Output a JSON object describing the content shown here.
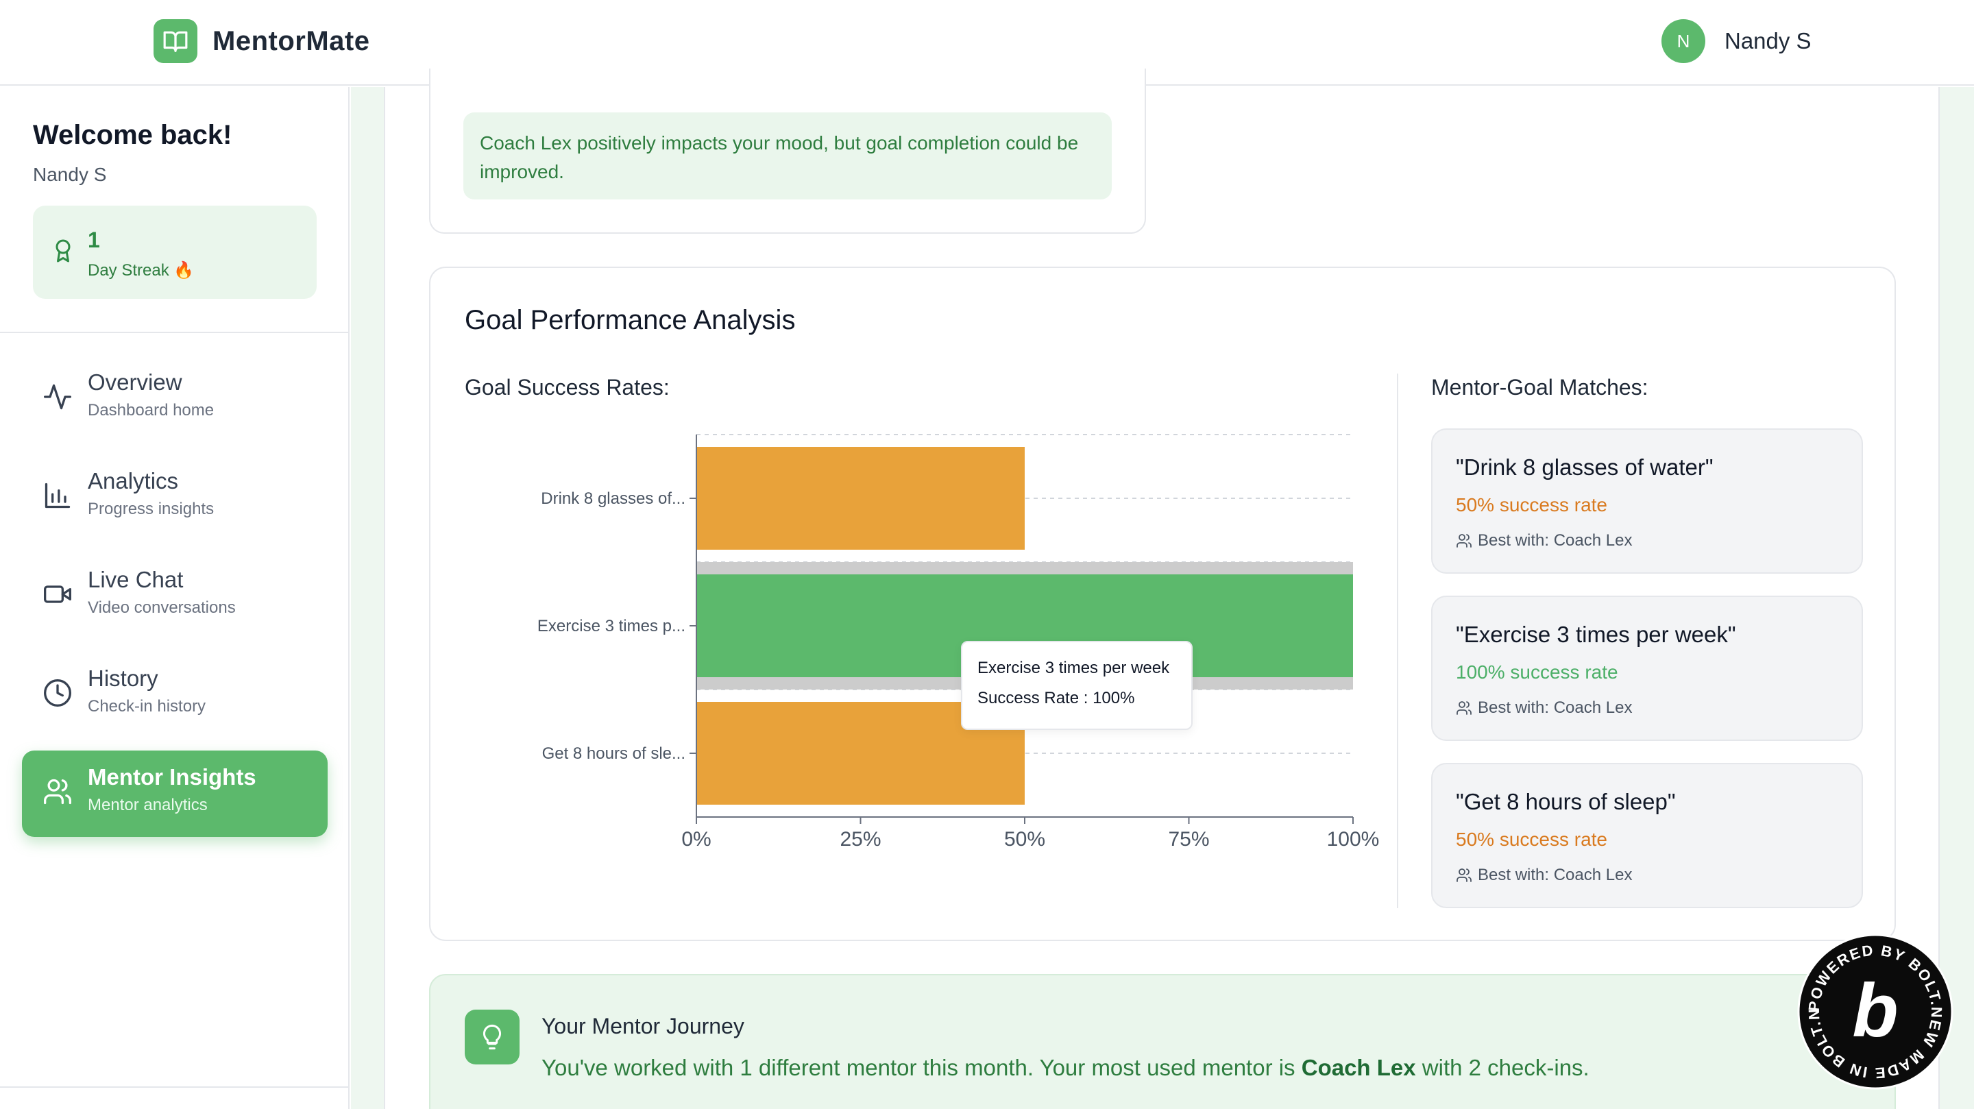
{
  "header": {
    "brand": "MentorMate",
    "user_initial": "N",
    "user_name": "Nandy S"
  },
  "sidebar": {
    "welcome": "Welcome back!",
    "user_name": "Nandy S",
    "streak_count": "1",
    "streak_label": "Day Streak 🔥",
    "items": [
      {
        "title": "Overview",
        "sub": "Dashboard home",
        "icon": "activity-icon"
      },
      {
        "title": "Analytics",
        "sub": "Progress insights",
        "icon": "bar-chart-icon"
      },
      {
        "title": "Live Chat",
        "sub": "Video conversations",
        "icon": "video-icon"
      },
      {
        "title": "History",
        "sub": "Check-in history",
        "icon": "clock-icon"
      },
      {
        "title": "Mentor Insights",
        "sub": "Mentor analytics",
        "icon": "users-icon",
        "active": true
      }
    ]
  },
  "insight": {
    "text": "Coach Lex positively impacts your mood, but goal completion could be improved."
  },
  "goal_performance": {
    "title": "Goal Performance Analysis",
    "rates_label": "Goal Success Rates:",
    "matches_label": "Mentor-Goal Matches:",
    "tooltip": {
      "title": "Exercise 3 times per week",
      "value": "Success Rate : 100%"
    },
    "matches": [
      {
        "title": "\"Drink 8 glasses of water\"",
        "rate": "50% success rate",
        "best": "Best with: Coach Lex",
        "color": "#d97a1f"
      },
      {
        "title": "\"Exercise 3 times per week\"",
        "rate": "100% success rate",
        "best": "Best with: Coach Lex",
        "color": "#4caf68"
      },
      {
        "title": "\"Get 8 hours of sleep\"",
        "rate": "50% success rate",
        "best": "Best with: Coach Lex",
        "color": "#d97a1f"
      }
    ]
  },
  "chart_data": {
    "type": "bar",
    "orientation": "horizontal",
    "categories": [
      "Drink 8 glasses of...",
      "Exercise 3 times p...",
      "Get 8 hours of sle..."
    ],
    "values": [
      50,
      100,
      50
    ],
    "colors": [
      "#e8a23a",
      "#5cb96c",
      "#e8a23a"
    ],
    "x_ticks": [
      "0%",
      "25%",
      "50%",
      "75%",
      "100%"
    ],
    "xlim": [
      0,
      100
    ],
    "highlighted_index": 1,
    "grid": true,
    "title": "",
    "xlabel": "",
    "ylabel": ""
  },
  "journey": {
    "title": "Your Mentor Journey",
    "text_before": "You've worked with 1 different mentor this month. Your most used mentor is ",
    "mentor": "Coach Lex",
    "text_after": " with 2 check-ins."
  },
  "badge": {
    "text": "POWERED BY BOLT.NEW MADE IN BOLT.NEW",
    "letter": "b"
  },
  "colors": {
    "accent": "#5cb96c",
    "orange": "#e8a23a",
    "light_green": "#eaf6ec"
  }
}
